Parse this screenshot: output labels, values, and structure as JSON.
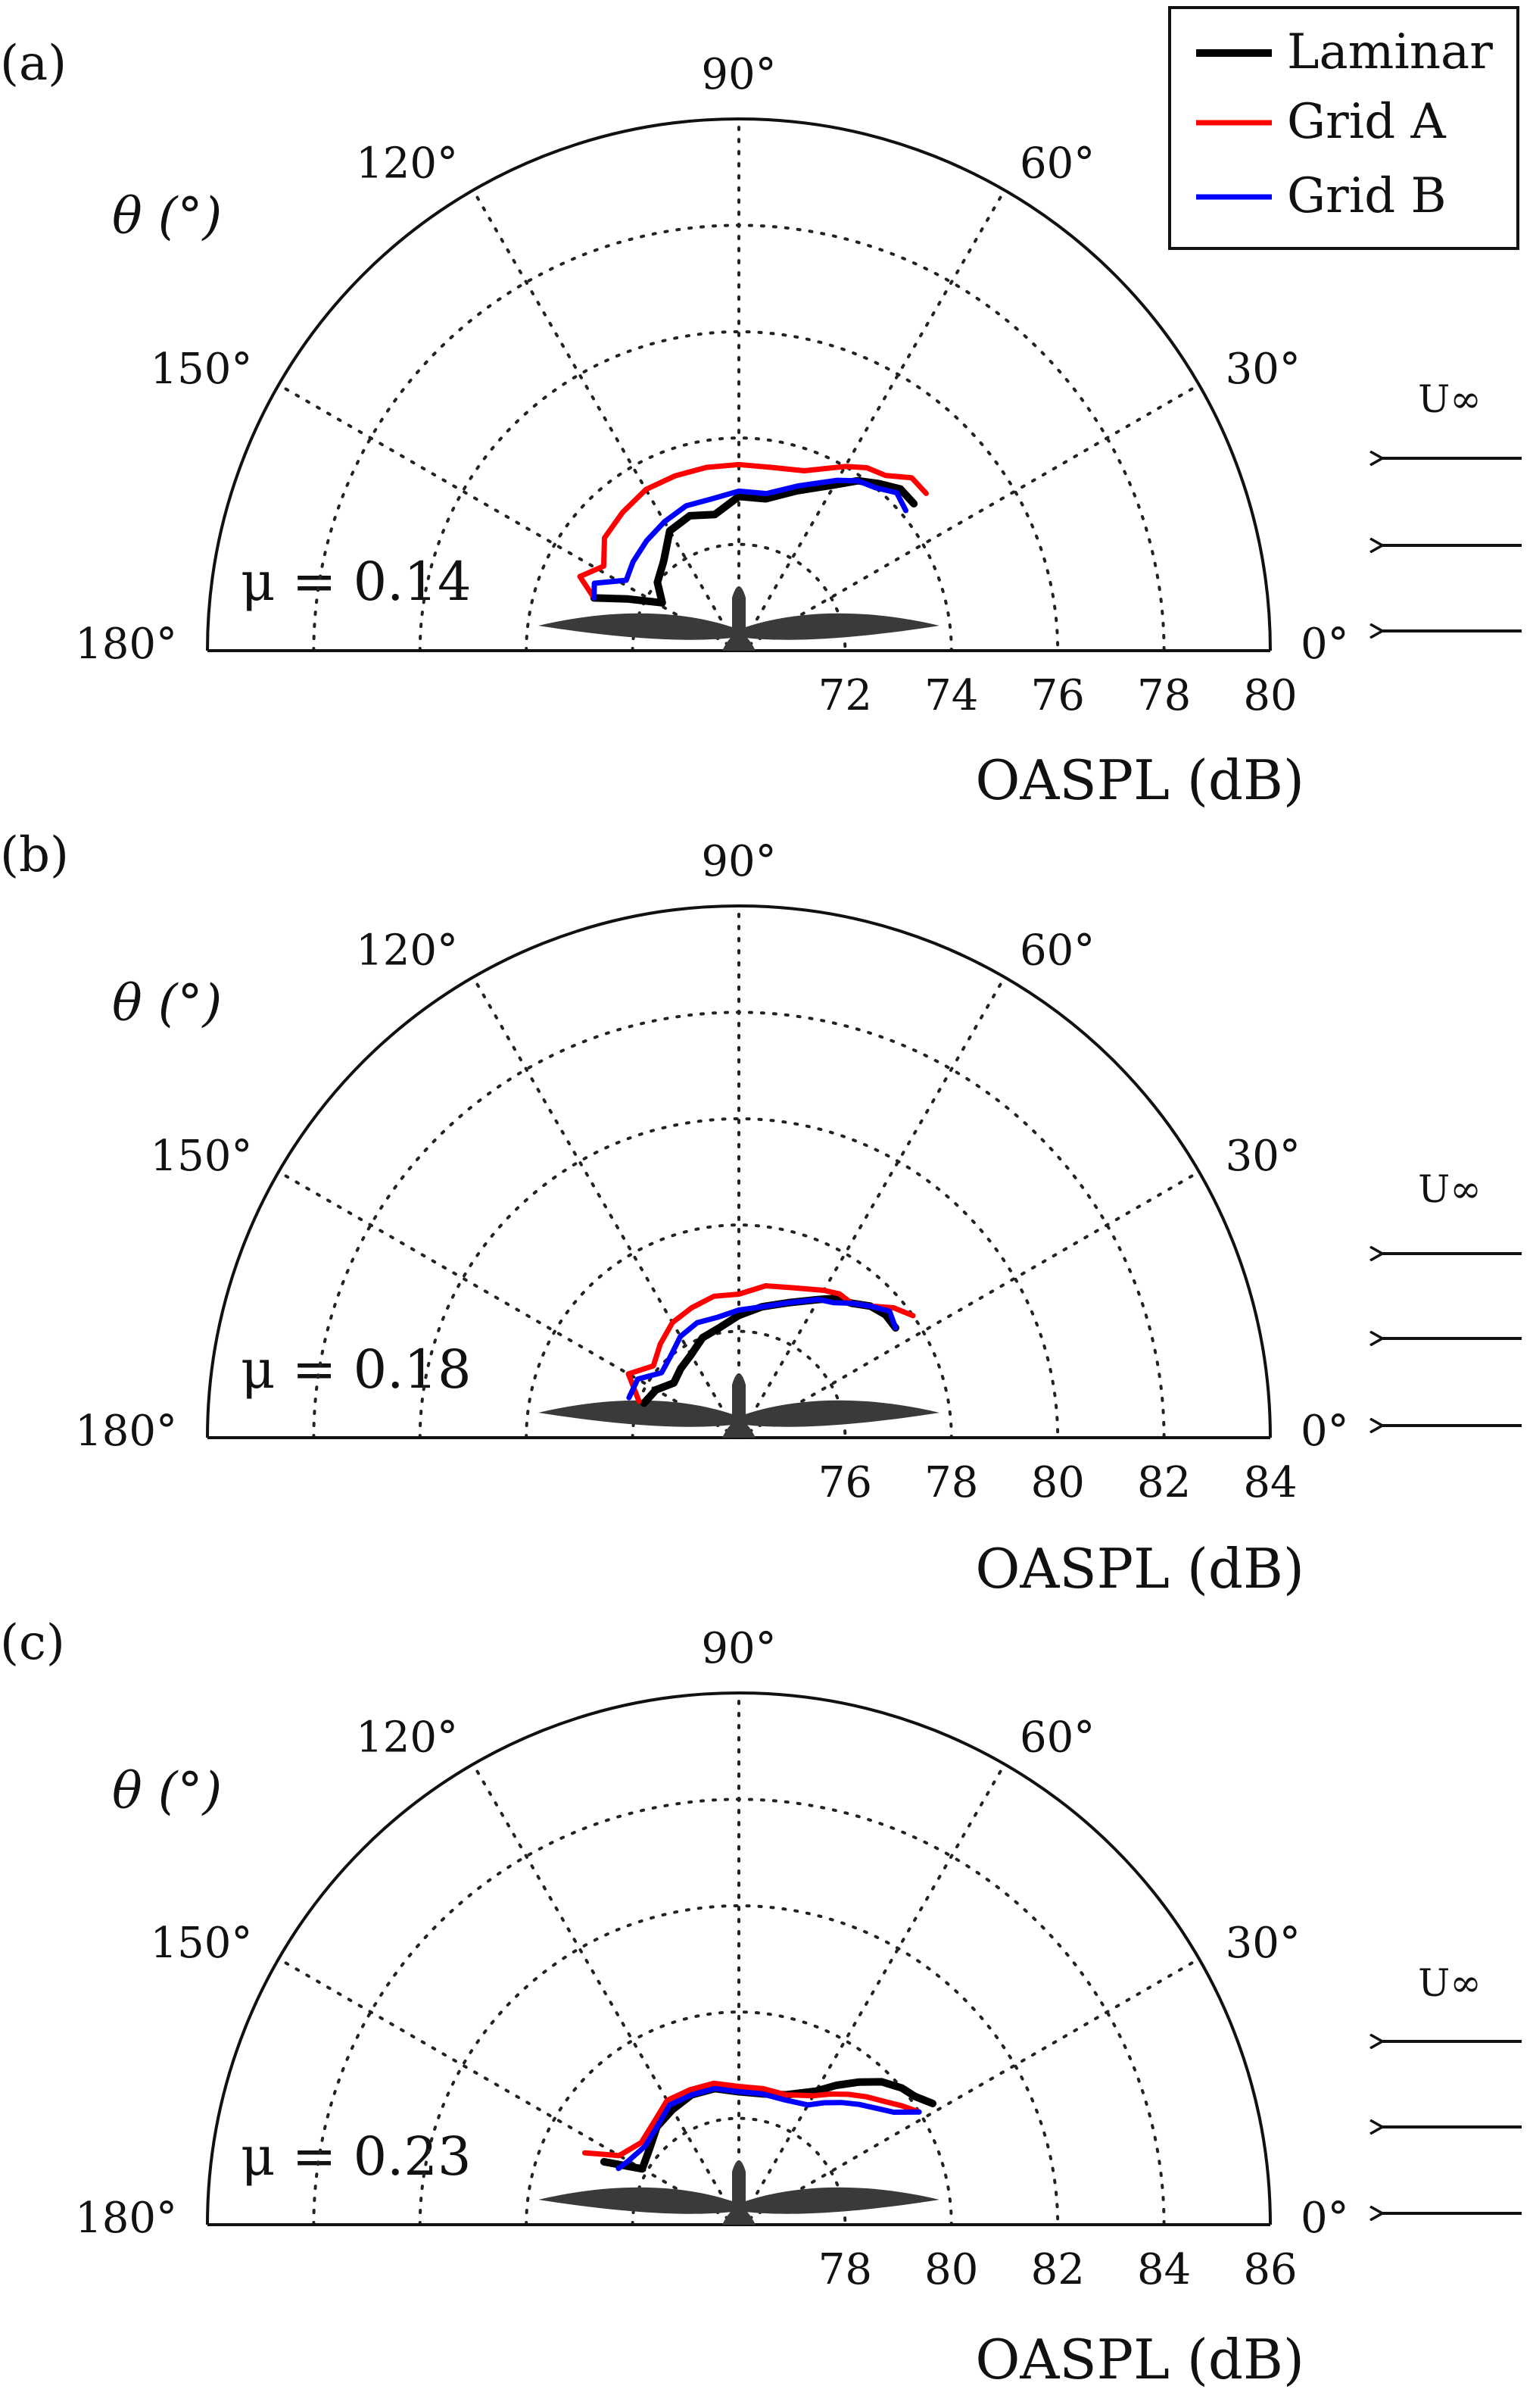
{
  "chart_data": [
    {
      "type": "polar-line",
      "panel_label": "(a)",
      "theta_label": "θ (°)",
      "rlabel": "OASPL (dB)",
      "annotation": "μ = 0.14",
      "rlim": [
        70,
        80
      ],
      "r_ticks": [
        "72",
        "74",
        "76",
        "78",
        "80"
      ],
      "theta_ticks": [
        "0°",
        "30°",
        "60°",
        "90°",
        "120°",
        "150°",
        "180°"
      ],
      "flow_label": "U∞",
      "series": [
        {
          "name": "Laminar",
          "color": "#000000",
          "width": 10,
          "theta": [
            40,
            45,
            50,
            55,
            60,
            70,
            80,
            90,
            100,
            110,
            120,
            130,
            140,
            148,
            155,
            160
          ],
          "r": [
            74.3,
            74.3,
            74.1,
            73.9,
            73.6,
            73.2,
            72.9,
            72.9,
            72.6,
            72.7,
            72.6,
            72.2,
            72.0,
            71.7,
            72.3,
            72.9
          ]
        },
        {
          "name": "Grid A",
          "color": "#ff0000",
          "width": 7,
          "theta": [
            40,
            45,
            50,
            55,
            60,
            70,
            80,
            90,
            100,
            110,
            120,
            130,
            140,
            148,
            155,
            160
          ],
          "r": [
            74.6,
            74.6,
            74.3,
            74.2,
            74.0,
            73.6,
            73.5,
            73.5,
            73.5,
            73.5,
            73.5,
            73.4,
            73.3,
            73.0,
            73.3,
            72.9
          ]
        },
        {
          "name": "Grid B",
          "color": "#0000ff",
          "width": 7,
          "theta": [
            40,
            45,
            50,
            55,
            60,
            70,
            80,
            90,
            100,
            110,
            120,
            130,
            140,
            148,
            155,
            160
          ],
          "r": [
            74.1,
            74.2,
            74.0,
            73.9,
            73.7,
            73.3,
            73.0,
            73.0,
            72.9,
            72.9,
            72.8,
            72.7,
            72.6,
            72.5,
            73.0,
            72.9
          ]
        }
      ]
    },
    {
      "type": "polar-line",
      "panel_label": "(b)",
      "theta_label": "θ (°)",
      "rlabel": "OASPL (dB)",
      "annotation": "μ = 0.18",
      "rlim": [
        74,
        84
      ],
      "r_ticks": [
        "76",
        "78",
        "80",
        "82",
        "84"
      ],
      "theta_ticks": [
        "0°",
        "30°",
        "60°",
        "90°",
        "120°",
        "150°",
        "180°"
      ],
      "flow_label": "U∞",
      "series": [
        {
          "name": "Laminar",
          "color": "#000000",
          "width": 10,
          "theta": [
            35,
            40,
            45,
            50,
            55,
            60,
            70,
            80,
            90,
            100,
            110,
            120,
            130,
            140,
            150,
            160
          ],
          "r": [
            77.6,
            77.6,
            77.5,
            77.3,
            77.2,
            77.0,
            76.7,
            76.5,
            76.3,
            76.1,
            76.0,
            75.8,
            75.7,
            75.6,
            75.8,
            75.9
          ]
        },
        {
          "name": "Grid A",
          "color": "#ff0000",
          "width": 7,
          "theta": [
            35,
            40,
            45,
            50,
            55,
            60,
            70,
            80,
            90,
            100,
            110,
            120,
            130,
            140,
            150,
            160
          ],
          "r": [
            78.0,
            77.8,
            77.5,
            77.3,
            77.3,
            77.2,
            77.0,
            76.9,
            76.7,
            76.7,
            76.6,
            76.5,
            76.3,
            76.1,
            76.4,
            76.0
          ]
        },
        {
          "name": "Grid B",
          "color": "#0000ff",
          "width": 7,
          "theta": [
            35,
            40,
            45,
            50,
            55,
            60,
            70,
            80,
            90,
            100,
            110,
            120,
            130,
            140,
            150,
            160
          ],
          "r": [
            77.6,
            77.7,
            77.5,
            77.3,
            77.1,
            77.0,
            76.7,
            76.5,
            76.4,
            76.3,
            76.3,
            76.2,
            76.0,
            75.9,
            76.2,
            76.2
          ]
        }
      ]
    },
    {
      "type": "polar-line",
      "panel_label": "(c)",
      "theta_label": "θ (°)",
      "rlabel": "OASPL (dB)",
      "annotation": "μ = 0.23",
      "rlim": [
        76,
        86
      ],
      "r_ticks": [
        "78",
        "80",
        "82",
        "84",
        "86"
      ],
      "theta_ticks": [
        "0°",
        "30°",
        "60°",
        "90°",
        "120°",
        "150°",
        "180°"
      ],
      "flow_label": "U∞",
      "series": [
        {
          "name": "Laminar",
          "color": "#000000",
          "width": 10,
          "theta": [
            32,
            36,
            40,
            45,
            50,
            55,
            60,
            70,
            80,
            90,
            100,
            110,
            120,
            130,
            140,
            150,
            155
          ],
          "r": [
            80.3,
            80.1,
            80.0,
            79.8,
            79.5,
            79.2,
            78.9,
            78.6,
            78.5,
            78.5,
            78.6,
            78.6,
            78.5,
            78.4,
            78.2,
            78.1,
            78.8
          ]
        },
        {
          "name": "Grid A",
          "color": "#ff0000",
          "width": 7,
          "theta": [
            32,
            36,
            40,
            45,
            50,
            55,
            60,
            70,
            80,
            90,
            100,
            110,
            120,
            130,
            140,
            150,
            155
          ],
          "r": [
            80.0,
            79.8,
            79.6,
            79.4,
            79.2,
            79.0,
            78.8,
            78.6,
            78.6,
            78.6,
            78.7,
            78.7,
            78.7,
            78.5,
            78.4,
            78.6,
            79.2
          ]
        },
        {
          "name": "Grid B",
          "color": "#0000ff",
          "width": 7,
          "theta": [
            32,
            36,
            40,
            45,
            50,
            55,
            60,
            70,
            80,
            90,
            100,
            110,
            120,
            130,
            140,
            150,
            155
          ],
          "r": [
            80.0,
            79.6,
            79.4,
            79.2,
            79.0,
            78.8,
            78.6,
            78.5,
            78.5,
            78.5,
            78.6,
            78.6,
            78.6,
            78.4,
            78.3,
            78.4,
            78.5
          ]
        }
      ]
    }
  ],
  "legend": [
    {
      "label": "Laminar",
      "color": "#000000"
    },
    {
      "label": "Grid A",
      "color": "#ff0000"
    },
    {
      "label": "Grid B",
      "color": "#0000ff"
    }
  ]
}
